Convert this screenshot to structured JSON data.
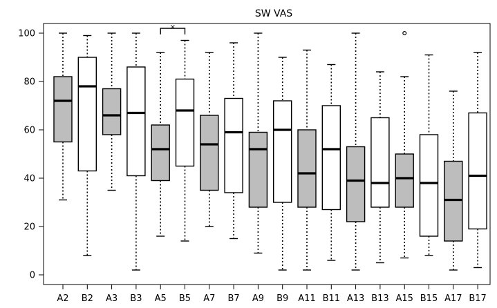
{
  "chart_data": {
    "type": "boxplot",
    "title": "SW VAS",
    "xlabel": "",
    "ylabel": "",
    "ylim": [
      -4,
      104
    ],
    "yticks": [
      0,
      20,
      40,
      60,
      80,
      100
    ],
    "grid": false,
    "legend": "none",
    "colors": {
      "filled": "#bdbdbd",
      "open": "#ffffff",
      "stroke": "#000000"
    },
    "categories": [
      "A2",
      "B2",
      "A3",
      "B3",
      "A5",
      "B5",
      "A7",
      "B7",
      "A9",
      "B9",
      "A11",
      "B11",
      "A13",
      "B13",
      "A15",
      "B15",
      "A17",
      "B17"
    ],
    "boxes": [
      {
        "label": "A2",
        "min": 31,
        "q1": 55,
        "median": 72,
        "q3": 82,
        "max": 100,
        "filled": true
      },
      {
        "label": "B2",
        "min": 8,
        "q1": 43,
        "median": 78,
        "q3": 90,
        "max": 99,
        "filled": false
      },
      {
        "label": "A3",
        "min": 35,
        "q1": 58,
        "median": 66,
        "q3": 77,
        "max": 100,
        "filled": true
      },
      {
        "label": "B3",
        "min": 2,
        "q1": 41,
        "median": 67,
        "q3": 86,
        "max": 100,
        "filled": false
      },
      {
        "label": "A5",
        "min": 16,
        "q1": 39,
        "median": 52,
        "q3": 62,
        "max": 92,
        "filled": true
      },
      {
        "label": "B5",
        "min": 14,
        "q1": 45,
        "median": 68,
        "q3": 81,
        "max": 97,
        "filled": false
      },
      {
        "label": "A7",
        "min": 20,
        "q1": 35,
        "median": 54,
        "q3": 66,
        "max": 92,
        "filled": true
      },
      {
        "label": "B7",
        "min": 15,
        "q1": 34,
        "median": 59,
        "q3": 73,
        "max": 96,
        "filled": false
      },
      {
        "label": "A9",
        "min": 9,
        "q1": 28,
        "median": 52,
        "q3": 59,
        "max": 100,
        "filled": true
      },
      {
        "label": "B9",
        "min": 2,
        "q1": 30,
        "median": 60,
        "q3": 72,
        "max": 90,
        "filled": false
      },
      {
        "label": "A11",
        "min": 2,
        "q1": 28,
        "median": 42,
        "q3": 60,
        "max": 93,
        "filled": true
      },
      {
        "label": "B11",
        "min": 6,
        "q1": 27,
        "median": 52,
        "q3": 70,
        "max": 87,
        "filled": false
      },
      {
        "label": "A13",
        "min": 2,
        "q1": 22,
        "median": 39,
        "q3": 53,
        "max": 100,
        "filled": true
      },
      {
        "label": "B13",
        "min": 5,
        "q1": 28,
        "median": 38,
        "q3": 65,
        "max": 84,
        "filled": false
      },
      {
        "label": "A15",
        "min": 7,
        "q1": 28,
        "median": 40,
        "q3": 50,
        "max": 82,
        "filled": true,
        "outliers": [
          100
        ]
      },
      {
        "label": "B15",
        "min": 8,
        "q1": 16,
        "median": 38,
        "q3": 58,
        "max": 91,
        "filled": false
      },
      {
        "label": "A17",
        "min": 2,
        "q1": 14,
        "median": 31,
        "q3": 47,
        "max": 76,
        "filled": true
      },
      {
        "label": "B17",
        "min": 3,
        "q1": 19,
        "median": 41,
        "q3": 67,
        "max": 92,
        "filled": false
      }
    ],
    "annotations": [
      {
        "type": "significance",
        "from": "A5",
        "to": "B5",
        "text": "×"
      }
    ]
  }
}
